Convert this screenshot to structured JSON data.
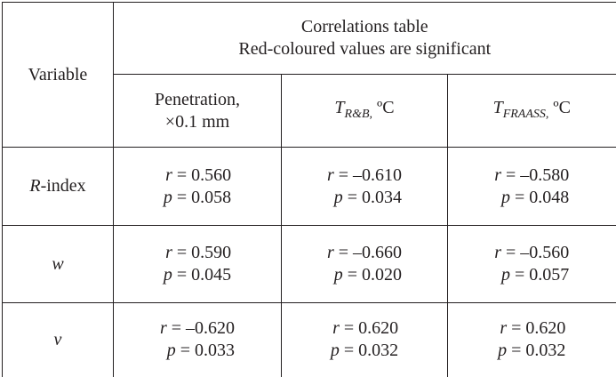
{
  "table": {
    "header": {
      "variable": "Variable",
      "title_lines": [
        "Correlations table",
        "Red-coloured values are significant"
      ],
      "columns": [
        {
          "lines": [
            "Penetration,",
            "×0.1 mm"
          ]
        },
        {
          "symbol": "T",
          "subscript": "R&B,",
          "unit": "ºC"
        },
        {
          "symbol": "T",
          "subscript": "FRAASS,",
          "unit": "ºC"
        }
      ]
    },
    "rows": [
      {
        "variable": "R-index",
        "cells": [
          [
            "r = 0.560",
            "p = 0.058"
          ],
          [
            "r = –0.610",
            "p = 0.034"
          ],
          [
            "r = –0.580",
            "p = 0.048"
          ]
        ]
      },
      {
        "variable": "w",
        "cells": [
          [
            "r = 0.590",
            "p = 0.045"
          ],
          [
            "r = –0.660",
            "p = 0.020"
          ],
          [
            "r = –0.560",
            "p = 0.057"
          ]
        ]
      },
      {
        "variable": "v",
        "cells": [
          [
            "r = –0.620",
            "p = 0.033"
          ],
          [
            "r = 0.620",
            "p = 0.032"
          ],
          [
            "r = 0.620",
            "p = 0.032"
          ]
        ]
      }
    ]
  }
}
